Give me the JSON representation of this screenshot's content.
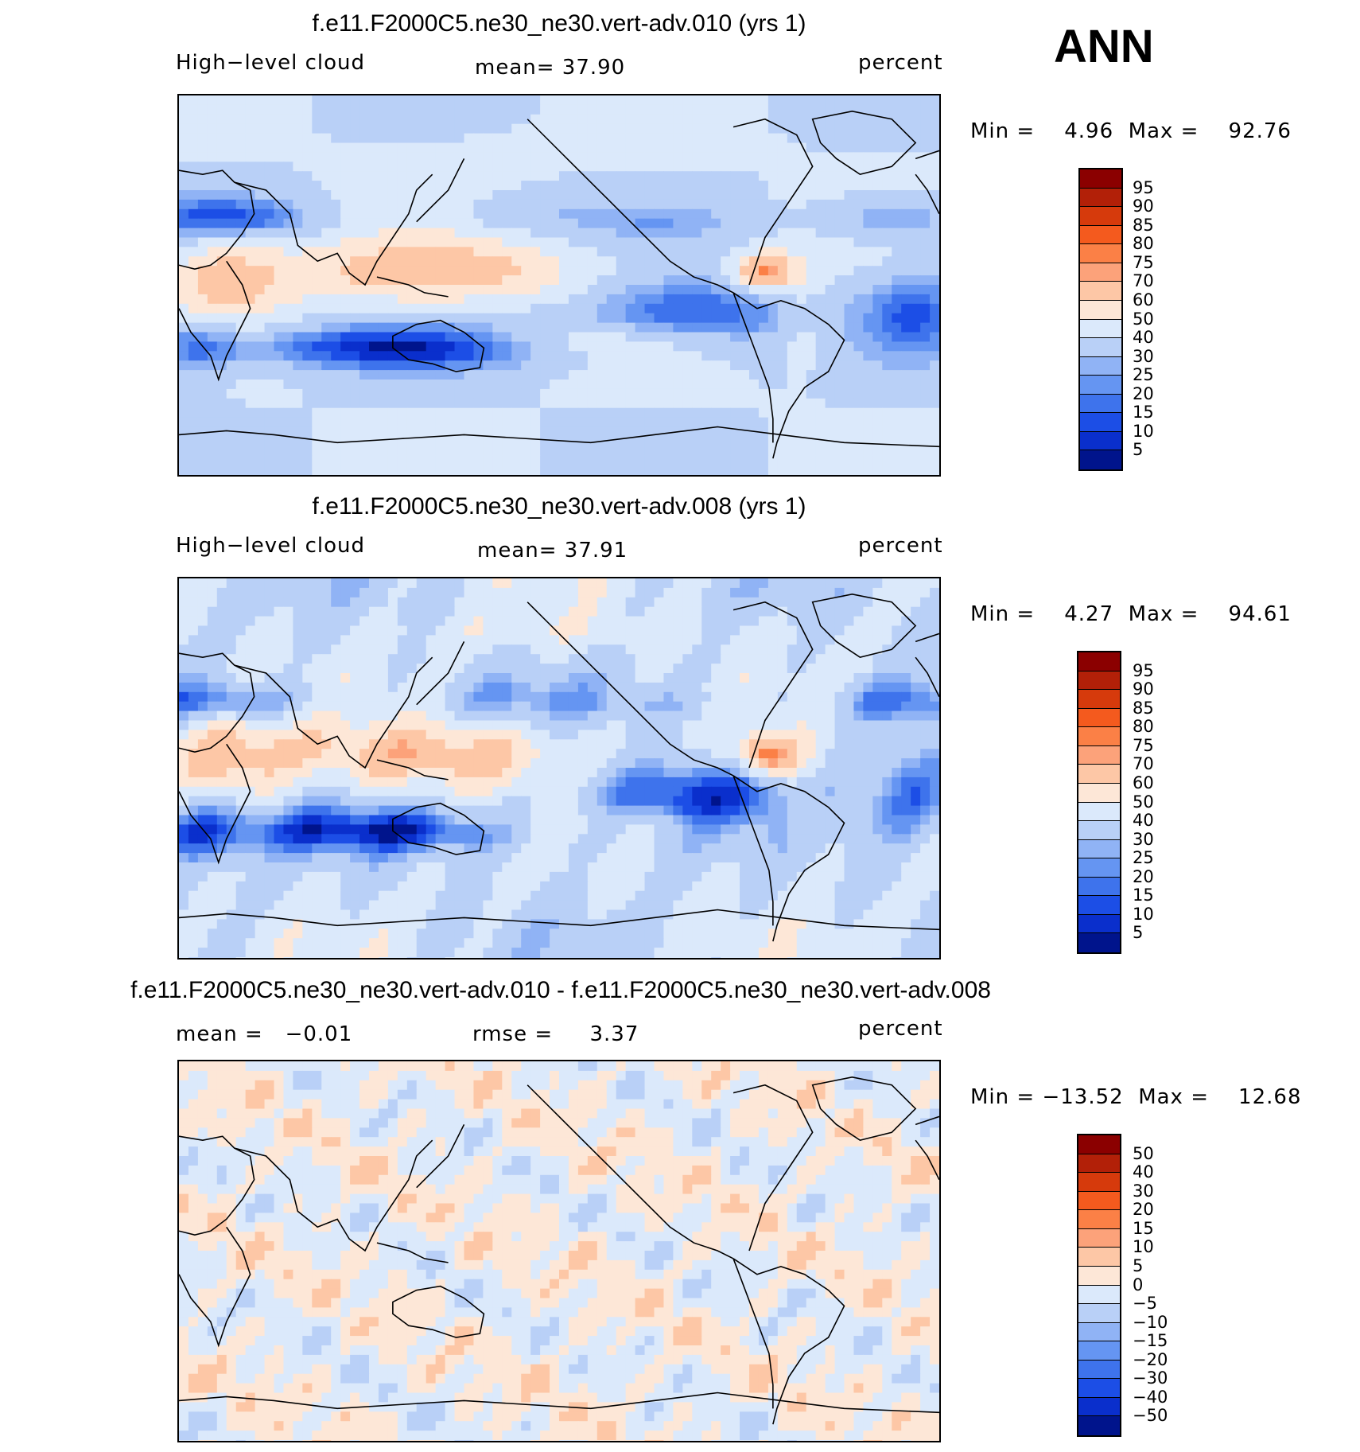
{
  "season": "ANN",
  "panels": [
    {
      "title": "f.e11.F2000C5.ne30_ne30.vert-adv.010 (yrs 1)",
      "left_label": "High−level cloud",
      "center_label": "mean=   37.90",
      "right_label": "percent",
      "minmax": "Min =    4.96  Max =    92.76",
      "levels": [
        "95",
        "90",
        "85",
        "80",
        "75",
        "70",
        "60",
        "50",
        "40",
        "30",
        "25",
        "20",
        "15",
        "10",
        "5"
      ],
      "colors": [
        "#8b0000",
        "#b22008",
        "#d63a0c",
        "#f45a1e",
        "#fb8046",
        "#fca27a",
        "#fdc7a6",
        "#fde7d7",
        "#dbe9fb",
        "#b9d0f7",
        "#90b3f5",
        "#6595f2",
        "#3e73ec",
        "#1c4ee6",
        "#0a2fcc",
        "#00148c"
      ],
      "variant": 1
    },
    {
      "title": "f.e11.F2000C5.ne30_ne30.vert-adv.008 (yrs 1)",
      "left_label": "High−level cloud",
      "center_label": "mean=   37.91",
      "right_label": "percent",
      "minmax": "Min =    4.27  Max =    94.61",
      "levels": [
        "95",
        "90",
        "85",
        "80",
        "75",
        "70",
        "60",
        "50",
        "40",
        "30",
        "25",
        "20",
        "15",
        "10",
        "5"
      ],
      "colors": [
        "#8b0000",
        "#b22008",
        "#d63a0c",
        "#f45a1e",
        "#fb8046",
        "#fca27a",
        "#fdc7a6",
        "#fde7d7",
        "#dbe9fb",
        "#b9d0f7",
        "#90b3f5",
        "#6595f2",
        "#3e73ec",
        "#1c4ee6",
        "#0a2fcc",
        "#00148c"
      ],
      "variant": 2
    },
    {
      "title": "f.e11.F2000C5.ne30_ne30.vert-adv.010 - f.e11.F2000C5.ne30_ne30.vert-adv.008",
      "left_label": "mean =   −0.01",
      "center_label": "rmse =     3.37",
      "right_label": "percent",
      "minmax": "Min = −13.52  Max =    12.68",
      "levels": [
        "50",
        "40",
        "30",
        "20",
        "15",
        "10",
        "5",
        "0",
        "−5",
        "−10",
        "−15",
        "−20",
        "−30",
        "−40",
        "−50"
      ],
      "colors": [
        "#8b0000",
        "#b22008",
        "#d63a0c",
        "#f45a1e",
        "#fb8046",
        "#fca27a",
        "#fdc7a6",
        "#fde7d7",
        "#dbe9fb",
        "#b9d0f7",
        "#90b3f5",
        "#6595f2",
        "#3e73ec",
        "#1c4ee6",
        "#0a2fcc",
        "#00148c"
      ],
      "variant": 3
    }
  ]
}
